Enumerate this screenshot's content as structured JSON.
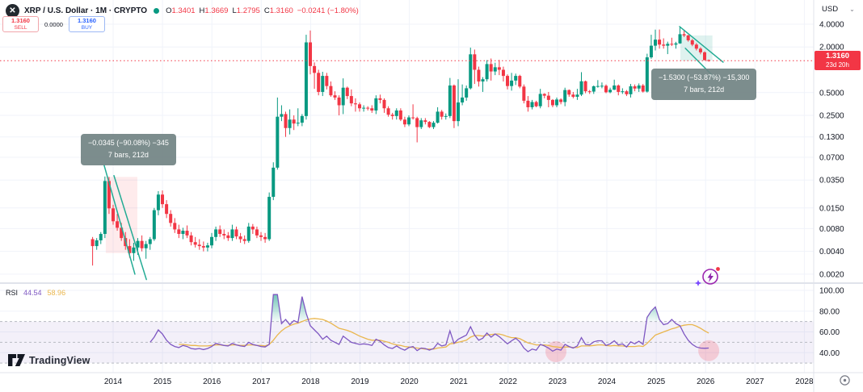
{
  "header": {
    "symbol_title": "XRP / U.S. Dollar · 1M · CRYPTO",
    "logo_letter": "✕",
    "ohlc": {
      "o_label": "O",
      "o_value": "1.3401",
      "h_label": "H",
      "h_value": "1.3669",
      "l_label": "L",
      "l_value": "1.2795",
      "c_label": "C",
      "c_value": "1.3160",
      "change": "−0.0241 (−1.80%)"
    },
    "sell": {
      "price": "1.3160",
      "label": "SELL"
    },
    "spread": "0.0000",
    "buy": {
      "price": "1.3160",
      "label": "BUY"
    }
  },
  "price_scale": {
    "currency": "USD",
    "last_price": "1.3160",
    "countdown": "23d 20h"
  },
  "rsi_legend": {
    "label": "RSI",
    "value": "44.54",
    "ma_value": "58.96"
  },
  "annotations": {
    "left_measure": {
      "line1": "−0.0345 (−90.08%) −345",
      "line2": "7 bars, 212d"
    },
    "right_measure": {
      "line1": "−1.5300 (−53.87%) −15,300",
      "line2": "7 bars, 212d"
    }
  },
  "watermark": "TradingView",
  "colors": {
    "up": "#089981",
    "down": "#f23645",
    "accent_blue": "#2962ff",
    "trend": "#22ab94",
    "rsi": "#7e57c2",
    "rsi_ma": "#eab64d",
    "band": "rgba(126,87,194,0.09)",
    "band_dash": "#b6b9c1",
    "grid": "#f0f3fa",
    "axis_text": "#131722",
    "separator": "#e0e3eb",
    "last_price_bg": "#f23645",
    "measure_fill_left": "rgba(242,54,69,0.10)",
    "measure_fill_right": "rgba(8,153,129,0.13)",
    "highlight_circle": "rgba(244,98,116,0.26)"
  },
  "chart_data": {
    "type": "candlestick",
    "title": "XRP / U.S. Dollar",
    "interval": "1M",
    "exchange": "CRYPTO",
    "scale": "log",
    "grid": true,
    "last_price_value": 1.316,
    "price_ticks": [
      {
        "v": 4.0,
        "label": "4.0000"
      },
      {
        "v": 2.0,
        "label": "2.0000"
      },
      {
        "v": 0.5,
        "label": "0.5000"
      },
      {
        "v": 0.25,
        "label": "0.2500"
      },
      {
        "v": 0.13,
        "label": "0.1300"
      },
      {
        "v": 0.07,
        "label": "0.0700"
      },
      {
        "v": 0.035,
        "label": "0.0350"
      },
      {
        "v": 0.015,
        "label": "0.0150"
      },
      {
        "v": 0.008,
        "label": "0.0080"
      },
      {
        "v": 0.004,
        "label": "0.0040"
      },
      {
        "v": 0.002,
        "label": "0.0020"
      }
    ],
    "x_axis_years": [
      "2014",
      "2015",
      "2016",
      "2017",
      "2018",
      "2019",
      "2020",
      "2021",
      "2022",
      "2023",
      "2024",
      "2025",
      "2026",
      "2027",
      "2028"
    ],
    "candles": [
      [
        0.0058,
        0.0062,
        0.0026,
        0.0047
      ],
      [
        0.0047,
        0.006,
        0.0042,
        0.0056
      ],
      [
        0.0056,
        0.0072,
        0.005,
        0.0068
      ],
      [
        0.0068,
        0.039,
        0.006,
        0.034
      ],
      [
        0.034,
        0.0385,
        0.0125,
        0.0148
      ],
      [
        0.0148,
        0.0165,
        0.009,
        0.01
      ],
      [
        0.01,
        0.0125,
        0.0075,
        0.0082
      ],
      [
        0.0082,
        0.0095,
        0.0055,
        0.006
      ],
      [
        0.006,
        0.0072,
        0.0042,
        0.0047
      ],
      [
        0.0047,
        0.0058,
        0.0033,
        0.0038
      ],
      [
        0.0038,
        0.0052,
        0.003,
        0.0045
      ],
      [
        0.0045,
        0.006,
        0.0036,
        0.0055
      ],
      [
        0.0055,
        0.0065,
        0.004,
        0.0044
      ],
      [
        0.0044,
        0.0055,
        0.0032,
        0.005
      ],
      [
        0.005,
        0.0062,
        0.0042,
        0.0058
      ],
      [
        0.0058,
        0.015,
        0.0055,
        0.014
      ],
      [
        0.014,
        0.025,
        0.012,
        0.0225
      ],
      [
        0.0225,
        0.0255,
        0.015,
        0.0168
      ],
      [
        0.0168,
        0.019,
        0.011,
        0.0125
      ],
      [
        0.0125,
        0.014,
        0.0085,
        0.0095
      ],
      [
        0.0095,
        0.011,
        0.007,
        0.0078
      ],
      [
        0.0078,
        0.009,
        0.006,
        0.0068
      ],
      [
        0.0068,
        0.0082,
        0.0058,
        0.0075
      ],
      [
        0.0075,
        0.0088,
        0.006,
        0.0065
      ],
      [
        0.0065,
        0.0072,
        0.0048,
        0.0053
      ],
      [
        0.0053,
        0.0062,
        0.0045,
        0.0049
      ],
      [
        0.0049,
        0.0058,
        0.0042,
        0.0047
      ],
      [
        0.0047,
        0.0054,
        0.004,
        0.0045
      ],
      [
        0.0045,
        0.0052,
        0.004,
        0.0048
      ],
      [
        0.0048,
        0.007,
        0.0044,
        0.0062
      ],
      [
        0.0062,
        0.0085,
        0.0055,
        0.0078
      ],
      [
        0.0078,
        0.0088,
        0.0062,
        0.0068
      ],
      [
        0.0068,
        0.0078,
        0.0058,
        0.0065
      ],
      [
        0.0065,
        0.0072,
        0.0055,
        0.006
      ],
      [
        0.006,
        0.009,
        0.0055,
        0.0078
      ],
      [
        0.0078,
        0.0085,
        0.0058,
        0.0063
      ],
      [
        0.0063,
        0.007,
        0.0052,
        0.0058
      ],
      [
        0.0058,
        0.0065,
        0.005,
        0.0055
      ],
      [
        0.0055,
        0.0095,
        0.0052,
        0.0085
      ],
      [
        0.0085,
        0.0092,
        0.0068,
        0.0078
      ],
      [
        0.0078,
        0.0085,
        0.006,
        0.0065
      ],
      [
        0.0065,
        0.0072,
        0.0055,
        0.0062
      ],
      [
        0.0062,
        0.007,
        0.0052,
        0.0058
      ],
      [
        0.0058,
        0.024,
        0.0055,
        0.021
      ],
      [
        0.021,
        0.06,
        0.019,
        0.051
      ],
      [
        0.051,
        0.43,
        0.048,
        0.24
      ],
      [
        0.24,
        0.34,
        0.21,
        0.26
      ],
      [
        0.26,
        0.28,
        0.13,
        0.17
      ],
      [
        0.17,
        0.3,
        0.14,
        0.22
      ],
      [
        0.22,
        0.25,
        0.16,
        0.195
      ],
      [
        0.195,
        0.31,
        0.18,
        0.2
      ],
      [
        0.2,
        0.26,
        0.18,
        0.245
      ],
      [
        0.245,
        2.9,
        0.22,
        2.3
      ],
      [
        2.3,
        3.3,
        0.87,
        1.12
      ],
      [
        1.12,
        1.25,
        0.56,
        0.91
      ],
      [
        0.91,
        1.0,
        0.46,
        0.51
      ],
      [
        0.51,
        0.94,
        0.45,
        0.83
      ],
      [
        0.83,
        0.91,
        0.55,
        0.61
      ],
      [
        0.61,
        0.7,
        0.44,
        0.46
      ],
      [
        0.46,
        0.52,
        0.4,
        0.43
      ],
      [
        0.43,
        0.46,
        0.25,
        0.34
      ],
      [
        0.34,
        0.77,
        0.26,
        0.58
      ],
      [
        0.58,
        0.6,
        0.41,
        0.45
      ],
      [
        0.45,
        0.55,
        0.33,
        0.36
      ],
      [
        0.36,
        0.42,
        0.28,
        0.35
      ],
      [
        0.35,
        0.37,
        0.28,
        0.31
      ],
      [
        0.31,
        0.34,
        0.28,
        0.315
      ],
      [
        0.315,
        0.33,
        0.29,
        0.31
      ],
      [
        0.31,
        0.34,
        0.27,
        0.29
      ],
      [
        0.29,
        0.46,
        0.26,
        0.42
      ],
      [
        0.42,
        0.47,
        0.36,
        0.4
      ],
      [
        0.4,
        0.42,
        0.27,
        0.31
      ],
      [
        0.31,
        0.33,
        0.24,
        0.255
      ],
      [
        0.255,
        0.27,
        0.22,
        0.245
      ],
      [
        0.245,
        0.31,
        0.22,
        0.29
      ],
      [
        0.29,
        0.31,
        0.21,
        0.22
      ],
      [
        0.22,
        0.24,
        0.175,
        0.19
      ],
      [
        0.19,
        0.25,
        0.18,
        0.235
      ],
      [
        0.235,
        0.35,
        0.22,
        0.23
      ],
      [
        0.23,
        0.24,
        0.11,
        0.175
      ],
      [
        0.175,
        0.23,
        0.165,
        0.215
      ],
      [
        0.215,
        0.23,
        0.19,
        0.205
      ],
      [
        0.205,
        0.21,
        0.17,
        0.175
      ],
      [
        0.175,
        0.21,
        0.165,
        0.2
      ],
      [
        0.2,
        0.32,
        0.195,
        0.28
      ],
      [
        0.28,
        0.295,
        0.22,
        0.24
      ],
      [
        0.24,
        0.265,
        0.22,
        0.245
      ],
      [
        0.245,
        0.78,
        0.23,
        0.62
      ],
      [
        0.62,
        0.64,
        0.17,
        0.21
      ],
      [
        0.21,
        0.75,
        0.18,
        0.37
      ],
      [
        0.37,
        0.64,
        0.34,
        0.43
      ],
      [
        0.43,
        0.62,
        0.39,
        0.57
      ],
      [
        0.57,
        1.96,
        0.55,
        1.6
      ],
      [
        1.6,
        1.85,
        0.65,
        1.0
      ],
      [
        1.0,
        1.1,
        0.6,
        0.7
      ],
      [
        0.7,
        0.8,
        0.51,
        0.75
      ],
      [
        0.75,
        1.34,
        0.7,
        1.19
      ],
      [
        1.19,
        1.41,
        0.72,
        0.95
      ],
      [
        0.95,
        1.24,
        0.85,
        1.08
      ],
      [
        1.08,
        1.35,
        0.85,
        1.0
      ],
      [
        1.0,
        1.1,
        0.7,
        0.83
      ],
      [
        0.83,
        0.87,
        0.55,
        0.61
      ],
      [
        0.61,
        0.91,
        0.53,
        0.72
      ],
      [
        0.72,
        0.89,
        0.63,
        0.83
      ],
      [
        0.83,
        0.86,
        0.57,
        0.6
      ],
      [
        0.6,
        0.64,
        0.36,
        0.39
      ],
      [
        0.39,
        0.45,
        0.28,
        0.32
      ],
      [
        0.32,
        0.4,
        0.3,
        0.375
      ],
      [
        0.375,
        0.39,
        0.32,
        0.33
      ],
      [
        0.33,
        0.56,
        0.31,
        0.48
      ],
      [
        0.48,
        0.49,
        0.42,
        0.455
      ],
      [
        0.455,
        0.51,
        0.32,
        0.4
      ],
      [
        0.4,
        0.41,
        0.32,
        0.34
      ],
      [
        0.34,
        0.43,
        0.32,
        0.405
      ],
      [
        0.405,
        0.42,
        0.35,
        0.375
      ],
      [
        0.375,
        0.58,
        0.33,
        0.54
      ],
      [
        0.54,
        0.55,
        0.44,
        0.47
      ],
      [
        0.47,
        0.51,
        0.42,
        0.44
      ],
      [
        0.44,
        0.56,
        0.4,
        0.47
      ],
      [
        0.47,
        0.93,
        0.45,
        0.705
      ],
      [
        0.705,
        0.72,
        0.49,
        0.52
      ],
      [
        0.52,
        0.54,
        0.48,
        0.515
      ],
      [
        0.515,
        0.62,
        0.48,
        0.605
      ],
      [
        0.605,
        0.73,
        0.58,
        0.61
      ],
      [
        0.61,
        0.68,
        0.57,
        0.615
      ],
      [
        0.615,
        0.64,
        0.49,
        0.505
      ],
      [
        0.505,
        0.58,
        0.49,
        0.545
      ],
      [
        0.545,
        0.74,
        0.54,
        0.62
      ],
      [
        0.62,
        0.64,
        0.46,
        0.51
      ],
      [
        0.51,
        0.57,
        0.48,
        0.52
      ],
      [
        0.52,
        0.54,
        0.45,
        0.475
      ],
      [
        0.475,
        0.65,
        0.43,
        0.605
      ],
      [
        0.605,
        0.64,
        0.52,
        0.565
      ],
      [
        0.565,
        0.66,
        0.51,
        0.62
      ],
      [
        0.62,
        0.65,
        0.5,
        0.515
      ],
      [
        0.515,
        1.63,
        0.5,
        1.46
      ],
      [
        1.46,
        2.9,
        1.4,
        2.08
      ],
      [
        2.08,
        3.39,
        1.8,
        2.5
      ],
      [
        2.5,
        3.4,
        1.9,
        2.15
      ],
      [
        2.15,
        2.6,
        1.9,
        2.08
      ],
      [
        2.08,
        2.35,
        1.61,
        2.2
      ],
      [
        2.2,
        2.65,
        2.06,
        2.15
      ],
      [
        2.15,
        2.34,
        1.9,
        2.23
      ],
      [
        2.23,
        3.66,
        2.2,
        2.95
      ],
      [
        2.95,
        3.38,
        2.7,
        2.84
      ],
      [
        2.84,
        2.9,
        2.35,
        2.45
      ],
      [
        2.45,
        2.55,
        2.05,
        2.15
      ],
      [
        2.15,
        2.25,
        1.8,
        1.9
      ],
      [
        1.9,
        1.98,
        1.6,
        1.7
      ],
      [
        1.7,
        1.75,
        1.33,
        1.34
      ],
      [
        1.3401,
        1.3669,
        1.2795,
        1.316
      ]
    ],
    "rsi": {
      "name": "RSI",
      "current": 44.54,
      "ma_current": 58.96,
      "ticks": [
        {
          "v": 100,
          "label": "100.00"
        },
        {
          "v": 80,
          "label": "80.00"
        },
        {
          "v": 60,
          "label": "60.00"
        },
        {
          "v": 40,
          "label": "40.00"
        }
      ],
      "levels": [
        70,
        50,
        30
      ],
      "overbought": 70,
      "start": 14,
      "values": [
        50,
        55,
        62,
        58,
        52,
        48,
        46,
        45,
        47,
        46,
        44,
        43.5,
        44,
        43,
        44,
        46,
        49,
        48,
        47,
        46.5,
        49,
        47.5,
        46.5,
        46,
        50,
        48,
        47,
        46,
        45.5,
        48,
        96,
        96,
        68,
        72,
        67,
        71,
        69,
        94,
        78,
        66,
        62,
        58,
        53,
        56,
        52,
        50,
        48,
        56,
        53,
        50,
        49,
        48,
        48.5,
        48,
        47,
        53,
        51,
        47.5,
        45,
        44,
        46.5,
        44,
        42.5,
        45,
        46,
        42,
        44.5,
        44,
        42.5,
        44,
        49,
        46.5,
        47.5,
        61,
        49,
        53,
        55,
        57,
        65,
        57,
        52,
        54,
        59,
        55,
        58,
        55.5,
        52,
        48.5,
        51.5,
        54,
        50.5,
        44.5,
        41,
        43.5,
        42.5,
        48,
        46.5,
        44.5,
        41.5,
        43.5,
        42.5,
        48,
        46,
        44.5,
        46.5,
        54.5,
        48,
        47.5,
        50.5,
        51.5,
        51.5,
        47,
        48.5,
        51.5,
        47.5,
        48.5,
        45.5,
        50.5,
        48.5,
        51,
        48,
        74,
        80,
        84,
        72,
        67,
        68,
        72,
        68,
        66,
        58,
        52,
        48,
        45.5,
        44.5,
        44.3,
        44.5
      ],
      "ma_start": 21,
      "ma_values": [
        48,
        48,
        47.5,
        47,
        47,
        46.5,
        46.5,
        46.5,
        47,
        47.5,
        47.5,
        47,
        47,
        47.5,
        47.5,
        47,
        47,
        47.5,
        47.5,
        47,
        47,
        46.5,
        48,
        52,
        57,
        61,
        64,
        66,
        67.5,
        68.5,
        70,
        71.5,
        72.5,
        73,
        72.5,
        72,
        70.5,
        68.5,
        66,
        63.5,
        62.5,
        61.5,
        60,
        58,
        56,
        54.5,
        53,
        52,
        52,
        52,
        51,
        50,
        48.5,
        47.5,
        47,
        46,
        45.5,
        45,
        44.5,
        44,
        43.5,
        43.5,
        43.5,
        44.5,
        45,
        45.5,
        48.5,
        49,
        50,
        51,
        52,
        55,
        56.5,
        56.5,
        56,
        57,
        57.5,
        58,
        58,
        57,
        55.5,
        54.5,
        54.5,
        53.5,
        51.5,
        49.5,
        48.5,
        47.5,
        47.5,
        47.5,
        47,
        46,
        45.5,
        45,
        45.5,
        45.5,
        45,
        45,
        46.5,
        46.5,
        46.5,
        47,
        47.5,
        47.5,
        47,
        46.5,
        47,
        46.5,
        46.5,
        46,
        46,
        46,
        46.5,
        46,
        49,
        53,
        57,
        58.5,
        60,
        61.5,
        63,
        64,
        65.5,
        66.5,
        67,
        67,
        65.5,
        63.5,
        61,
        58.96
      ],
      "highlight_circles": [
        {
          "bar": 112.8,
          "value": 41
        },
        {
          "bar": 150,
          "value": 42
        }
      ]
    },
    "drawings": {
      "trendlines": [
        {
          "b1": 2.8,
          "p1": 0.055,
          "b2": 10.3,
          "p2": 0.002
        },
        {
          "b1": 5.2,
          "p1": 0.04,
          "b2": 13.1,
          "p2": 0.0017
        },
        {
          "b1": 142.9,
          "p1": 3.72,
          "b2": 153.5,
          "p2": 1.26
        },
        {
          "b1": 144.3,
          "p1": 1.92,
          "b2": 151.4,
          "p2": 0.79
        }
      ],
      "measure_regions": [
        {
          "bar_start": 3.6,
          "bar_end": 10.5,
          "price_top": 0.0385,
          "price_bottom": 0.0038,
          "fill": "left"
        },
        {
          "bar_start": 143.5,
          "bar_end": 150.5,
          "price_top": 2.84,
          "price_bottom": 1.316,
          "fill": "right"
        }
      ]
    }
  }
}
